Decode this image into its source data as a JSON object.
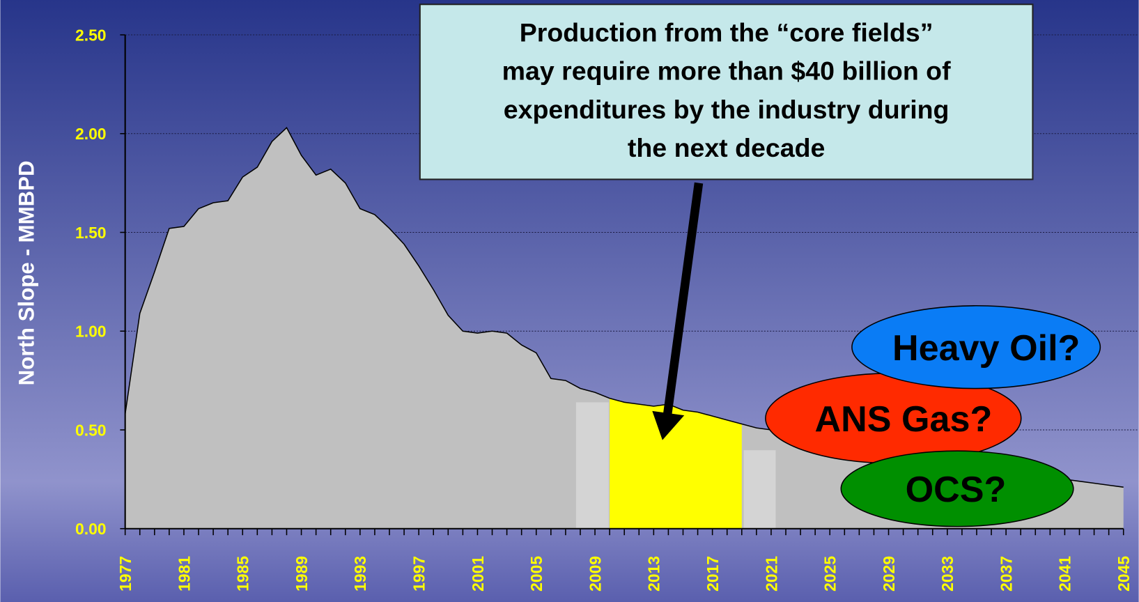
{
  "chart_data": {
    "type": "area",
    "ylabel": "North Slope - MMBPD",
    "x": [
      1977,
      1978,
      1979,
      1980,
      1981,
      1982,
      1983,
      1984,
      1985,
      1986,
      1987,
      1988,
      1989,
      1990,
      1991,
      1992,
      1993,
      1994,
      1995,
      1996,
      1997,
      1998,
      1999,
      2000,
      2001,
      2002,
      2003,
      2004,
      2005,
      2006,
      2007,
      2008,
      2009,
      2010,
      2011,
      2012,
      2013,
      2014,
      2015,
      2016,
      2017,
      2018,
      2019,
      2020,
      2021,
      2022,
      2023,
      2024,
      2025,
      2026,
      2027,
      2028,
      2029,
      2030,
      2031,
      2032,
      2033,
      2034,
      2035,
      2036,
      2037,
      2038,
      2039,
      2040,
      2041,
      2042,
      2043,
      2044,
      2045
    ],
    "values": [
      0.58,
      1.09,
      1.3,
      1.52,
      1.53,
      1.62,
      1.65,
      1.66,
      1.78,
      1.83,
      1.96,
      2.03,
      1.89,
      1.79,
      1.82,
      1.75,
      1.62,
      1.59,
      1.52,
      1.44,
      1.33,
      1.21,
      1.08,
      1.0,
      0.99,
      1.0,
      0.99,
      0.93,
      0.89,
      0.76,
      0.75,
      0.71,
      0.69,
      0.66,
      0.64,
      0.63,
      0.62,
      0.63,
      0.6,
      0.59,
      0.57,
      0.55,
      0.53,
      0.51,
      0.5,
      0.49,
      0.48,
      0.47,
      0.46,
      0.44,
      0.43,
      0.42,
      0.4,
      0.39,
      0.38,
      0.36,
      0.35,
      0.34,
      0.32,
      0.31,
      0.3,
      0.28,
      0.27,
      0.26,
      0.25,
      0.24,
      0.23,
      0.22,
      0.21
    ],
    "color": "#c0c0c0",
    "highlight": {
      "from": 2010,
      "to": 2019,
      "color": "#ffff00"
    },
    "xlim": [
      1977,
      2045
    ],
    "xticks": [
      1977,
      1981,
      1985,
      1989,
      1993,
      1997,
      2001,
      2005,
      2009,
      2013,
      2017,
      2021,
      2025,
      2029,
      2033,
      2037,
      2041,
      2045
    ],
    "ylim": [
      0,
      2.5
    ],
    "yticks": [
      {
        "value": 0,
        "label": "0.00"
      },
      {
        "value": 0.5,
        "label": "0.50"
      },
      {
        "value": 1,
        "label": "1.00"
      },
      {
        "value": 1.5,
        "label": "1.50"
      },
      {
        "value": 2,
        "label": "2.00"
      },
      {
        "value": 2.5,
        "label": "2.50"
      }
    ],
    "grid": true,
    "annotations": {
      "callout": [
        "Production from the “core fields”",
        "may require more than $40 billion of",
        "expenditures by the industry during",
        "the next decade"
      ],
      "bubbles": [
        {
          "text": "ANS Gas?",
          "color": "#ff2a00"
        },
        {
          "text": "OCS?",
          "color": "#008f00"
        },
        {
          "text": "Heavy Oil?",
          "color": "#0a7cf5"
        }
      ]
    }
  }
}
